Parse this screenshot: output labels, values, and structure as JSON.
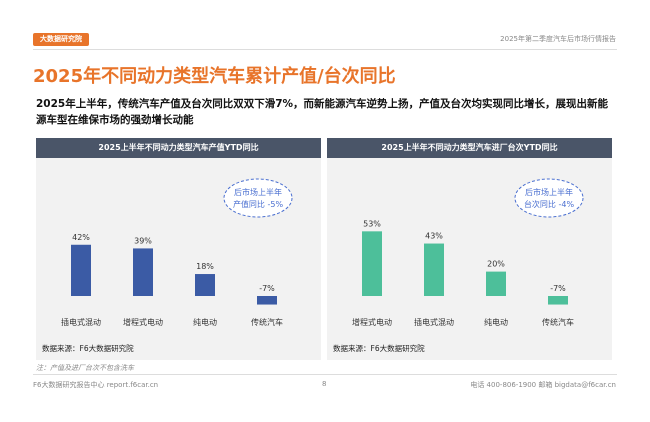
{
  "header": {
    "logo_text": "大数据研究院",
    "report_title": "2025年第二季度汽车后市场行情报告"
  },
  "page_title": "2025年不同动力类型汽车累计产值/台次同比",
  "summary": "2025年上半年，传统汽车产值及台次同比双双下滑7%，而新能源汽车逆势上扬，产值及台次均实现同比增长，展现出新能源车型在维保市场的强劲增长动能",
  "colors": {
    "accent": "#e8742a",
    "bar_left": "#3b5ba5",
    "bar_right": "#4dbf9a",
    "panel_header": "#4a5568",
    "bubble": "#4a6fd0"
  },
  "chart_data": [
    {
      "type": "bar",
      "title": "2025上半年不同动力类型汽车产值YTD同比",
      "categories": [
        "插电式混动",
        "增程式电动",
        "纯电动",
        "传统汽车"
      ],
      "values": [
        42,
        39,
        18,
        -7
      ],
      "value_labels": [
        "42%",
        "39%",
        "18%",
        "-7%"
      ],
      "annotation": {
        "line1": "后市场上半年",
        "line2": "产值同比 -5%"
      },
      "source": "数据来源：F6大数据研究院"
    },
    {
      "type": "bar",
      "title": "2025上半年不同动力类型汽车进厂台次YTD同比",
      "categories": [
        "增程式电动",
        "插电式混动",
        "纯电动",
        "传统汽车"
      ],
      "values": [
        53,
        43,
        20,
        -7
      ],
      "value_labels": [
        "53%",
        "43%",
        "20%",
        "-7%"
      ],
      "annotation": {
        "line1": "后市场上半年",
        "line2": "台次同比 -4%"
      },
      "source": "数据来源：F6大数据研究院"
    }
  ],
  "note": "注：产值及进厂台次不包含洗车",
  "footer": {
    "left": "F6大数据研究报告中心 report.f6car.cn",
    "page": "8",
    "right": "电话 400-806-1900  邮箱 bigdata@f6car.cn"
  }
}
